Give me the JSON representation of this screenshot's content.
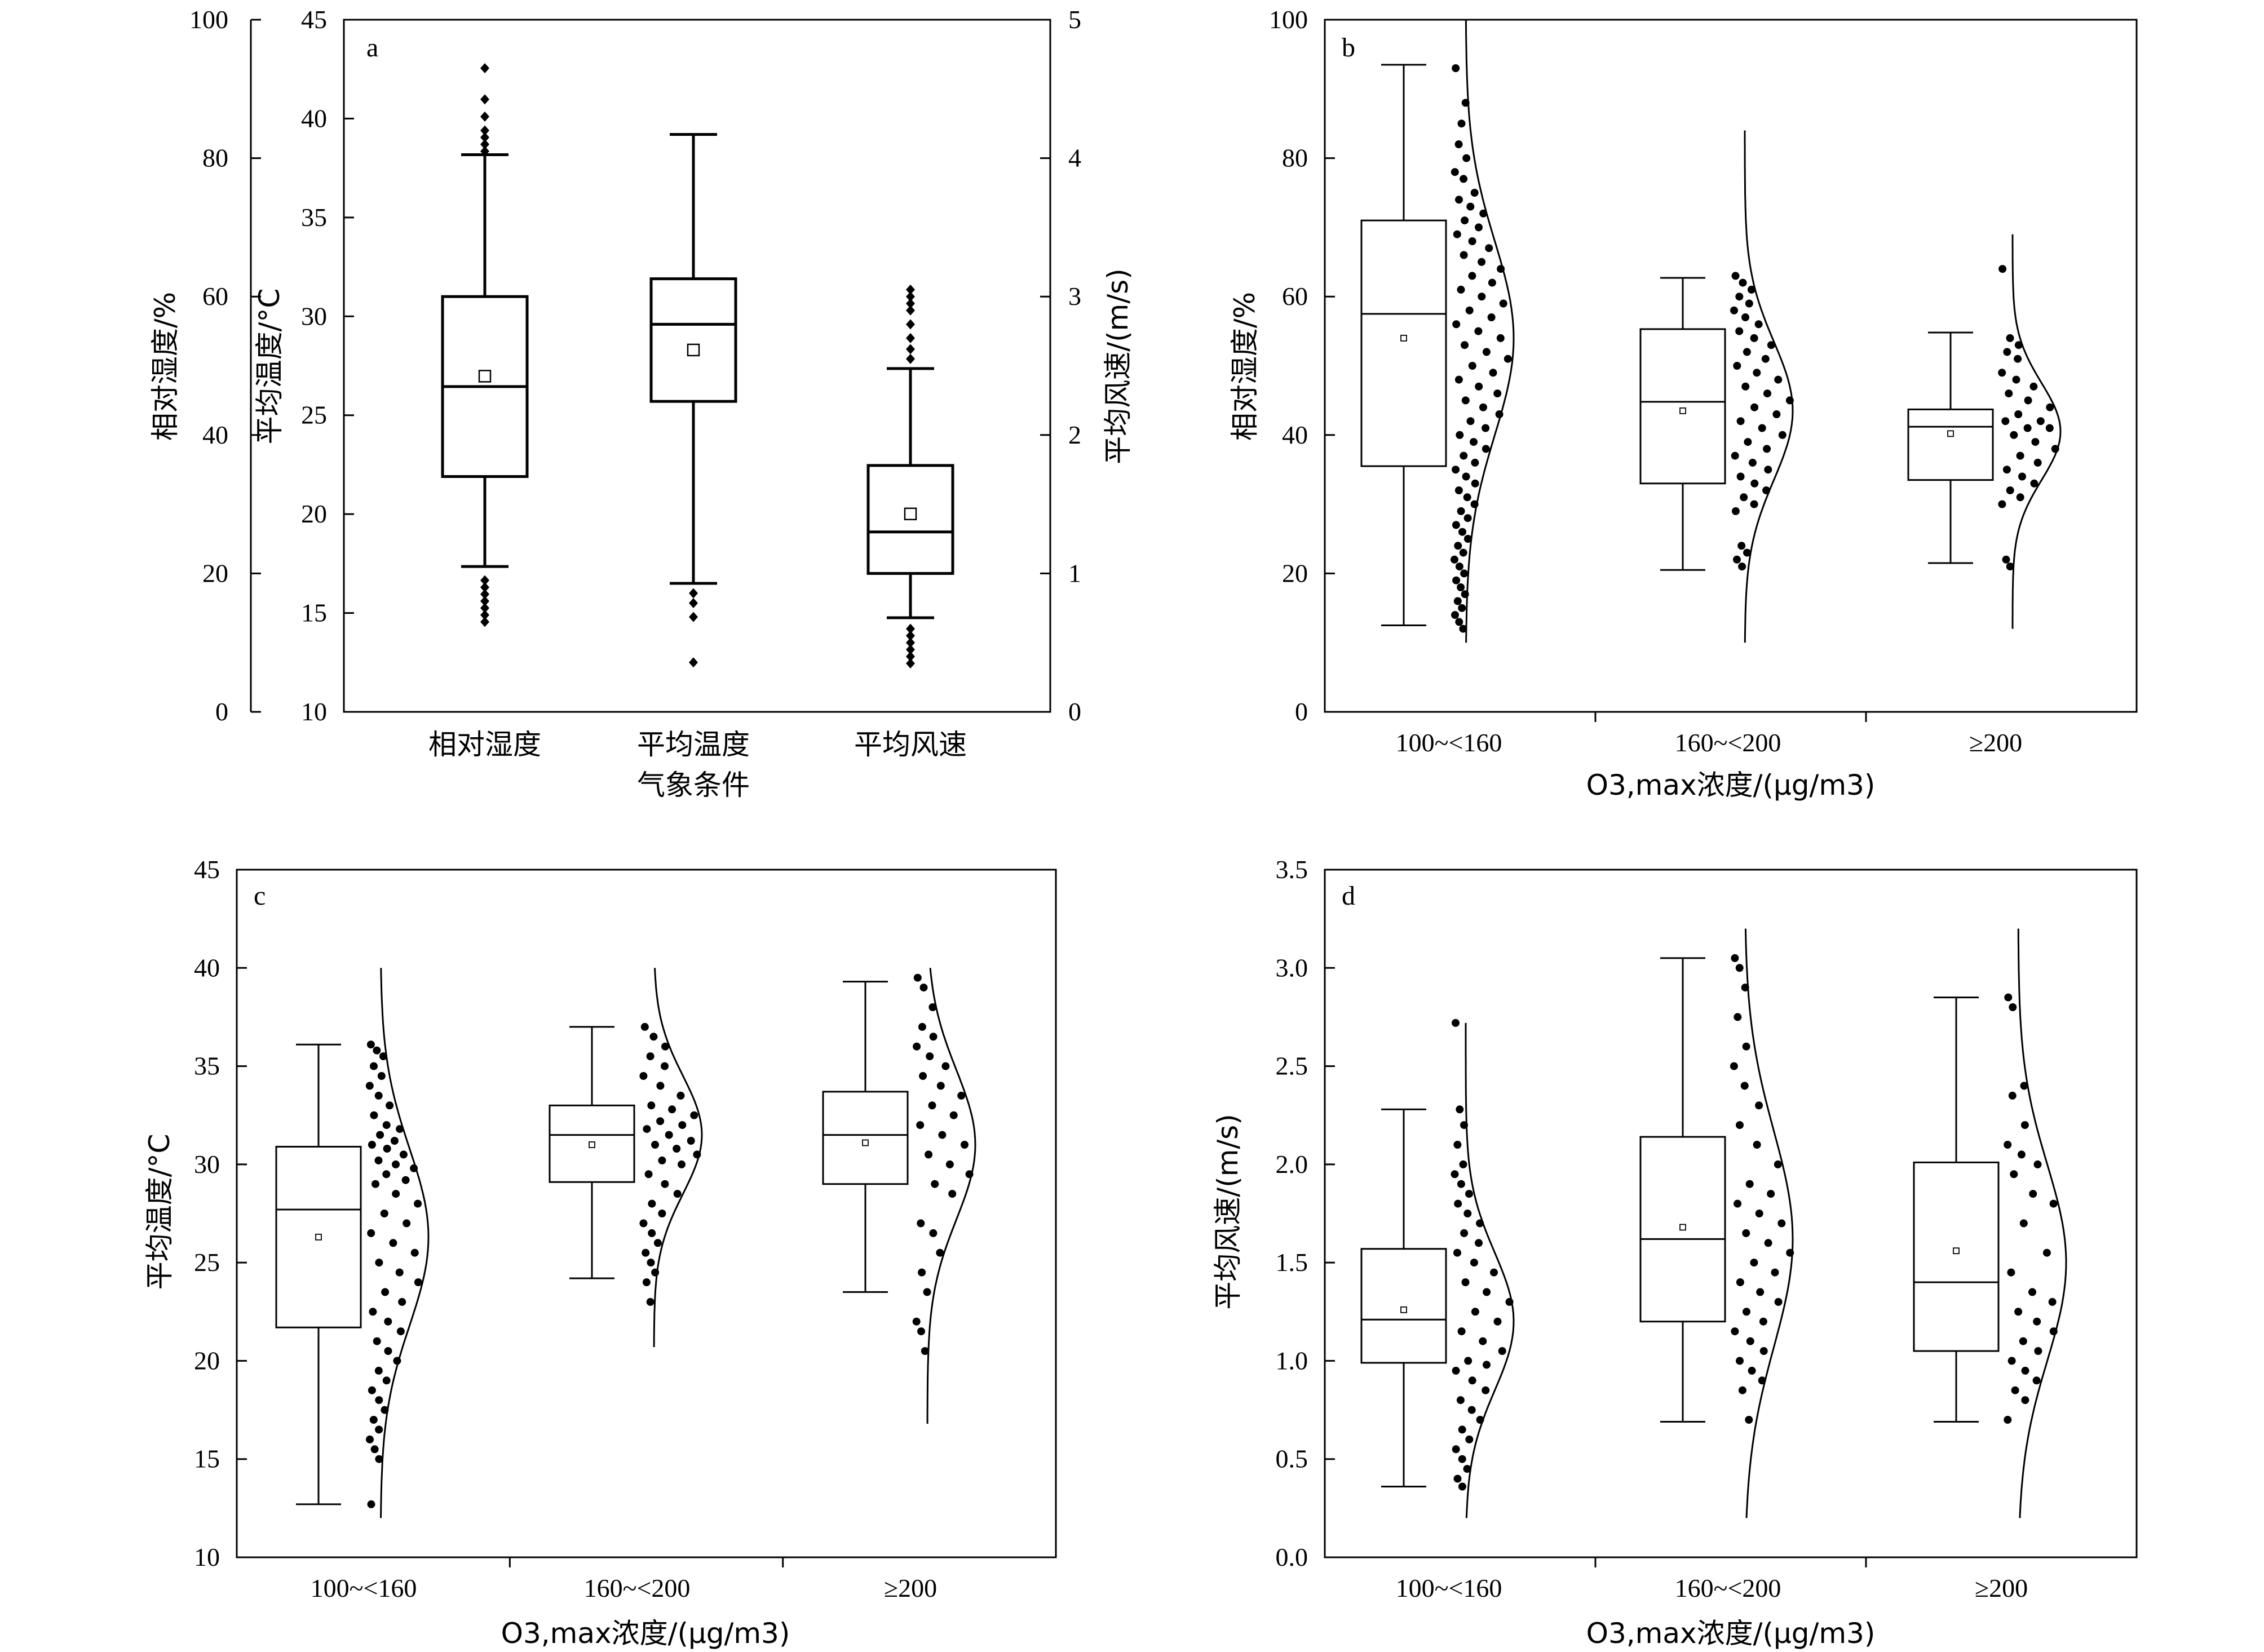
{
  "chart_data": [
    {
      "type": "box",
      "panel_label": "a",
      "xlabel": "气象条件",
      "categories": [
        "相对湿度",
        "平均温度",
        "平均风速"
      ],
      "axes": [
        {
          "side": "outer-left",
          "label": "相对湿度/%",
          "range": [
            0,
            100
          ],
          "ticks": [
            0,
            20,
            40,
            60,
            80,
            100
          ],
          "applies_to": "相对湿度"
        },
        {
          "side": "left",
          "label": "平均温度/°C",
          "range": [
            10,
            45
          ],
          "ticks": [
            10,
            15,
            20,
            25,
            30,
            35,
            40,
            45
          ],
          "applies_to": "平均温度"
        },
        {
          "side": "right",
          "label": "平均风速/(m/s)",
          "range": [
            0,
            5
          ],
          "ticks": [
            0,
            1,
            2,
            3,
            4,
            5
          ],
          "applies_to": "平均风速"
        }
      ],
      "boxes": [
        {
          "category": "相对湿度",
          "axis": "outer-left",
          "whisker_low": 21,
          "q1": 34,
          "median": 47,
          "q3": 60,
          "whisker_high": 80.5,
          "mean": 48.5,
          "outliers": [
            13,
            14,
            15,
            16,
            17,
            18,
            19,
            81,
            82,
            83,
            84,
            86,
            88.5,
            93
          ]
        },
        {
          "category": "平均温度",
          "axis": "left",
          "whisker_low": 16.5,
          "q1": 25.7,
          "median": 29.6,
          "q3": 31.9,
          "whisker_high": 39.2,
          "mean": 28.3,
          "outliers": [
            16,
            15.5,
            14.8,
            12.5
          ]
        },
        {
          "category": "平均风速",
          "axis": "right",
          "whisker_low": 0.68,
          "q1": 1.0,
          "median": 1.3,
          "q3": 1.78,
          "whisker_high": 2.48,
          "mean": 1.43,
          "outliers": [
            0.35,
            0.4,
            0.45,
            0.5,
            0.55,
            0.6,
            2.55,
            2.62,
            2.7,
            2.8,
            2.9,
            2.95,
            3.0,
            3.05
          ]
        }
      ]
    },
    {
      "type": "box",
      "panel_label": "b",
      "xlabel": "O3,max浓度/(μg/m3)",
      "ylabel": "相对湿度/%",
      "ylim": [
        0,
        100
      ],
      "yticks": [
        0,
        20,
        40,
        60,
        80,
        100
      ],
      "categories": [
        "100~<160",
        "160~<200",
        "≥200"
      ],
      "boxes": [
        {
          "whisker_low": 12.5,
          "q1": 35.5,
          "median": 57.5,
          "q3": 71,
          "whisker_high": 93.5,
          "mean": 54
        },
        {
          "whisker_low": 20.5,
          "q1": 33,
          "median": 44.8,
          "q3": 55.3,
          "whisker_high": 62.7,
          "mean": 43.5
        },
        {
          "whisker_low": 21.5,
          "q1": 33.5,
          "median": 41.2,
          "q3": 43.7,
          "whisker_high": 54.8,
          "mean": 40.2
        }
      ],
      "distribution_curves": [
        {
          "mean": 54,
          "sd": 14,
          "y_range": [
            10,
            100
          ]
        },
        {
          "mean": 43.5,
          "sd": 10,
          "y_range": [
            10,
            84
          ]
        },
        {
          "mean": 40.5,
          "sd": 7,
          "y_range": [
            12,
            69
          ]
        }
      ],
      "points": [
        [
          93,
          85,
          88,
          82,
          80,
          78,
          77,
          75,
          74,
          73,
          72,
          71,
          70,
          69,
          68,
          67,
          66,
          65,
          64,
          63,
          62,
          61,
          60,
          59,
          58,
          57,
          56,
          55,
          54,
          53,
          52,
          51,
          50,
          49,
          48,
          47,
          46,
          45,
          44,
          43,
          42,
          41,
          40,
          39,
          38,
          37,
          36,
          35,
          34,
          33,
          32,
          31,
          30,
          29,
          28,
          27,
          26,
          25,
          24,
          23,
          22,
          21,
          20,
          19,
          18,
          17,
          16,
          15,
          14,
          13,
          12
        ],
        [
          63,
          62,
          61,
          60,
          59,
          58,
          57,
          56,
          55,
          54,
          53,
          52,
          51,
          50,
          49,
          48,
          47,
          46,
          45,
          44,
          43,
          42,
          41,
          40,
          39,
          38,
          37,
          36,
          35,
          34,
          33,
          32,
          31,
          30,
          29,
          24,
          23,
          22,
          21
        ],
        [
          64,
          54,
          53,
          52,
          51,
          49,
          48,
          47,
          46,
          45,
          44,
          43,
          42,
          42,
          41,
          41,
          40,
          39,
          38,
          37,
          36,
          35,
          34,
          33,
          32,
          31,
          30,
          22,
          21
        ]
      ]
    },
    {
      "type": "box",
      "panel_label": "c",
      "xlabel": "O3,max浓度/(μg/m3)",
      "ylabel": "平均温度/°C",
      "ylim": [
        10,
        45
      ],
      "yticks": [
        10,
        15,
        20,
        25,
        30,
        35,
        40,
        45
      ],
      "categories": [
        "100~<160",
        "160~<200",
        "≥200"
      ],
      "boxes": [
        {
          "whisker_low": 12.7,
          "q1": 21.7,
          "median": 27.7,
          "q3": 30.9,
          "whisker_high": 36.1,
          "mean": 26.3
        },
        {
          "whisker_low": 24.2,
          "q1": 29.1,
          "median": 31.5,
          "q3": 33,
          "whisker_high": 37,
          "mean": 31
        },
        {
          "whisker_low": 23.5,
          "q1": 29,
          "median": 31.5,
          "q3": 33.7,
          "whisker_high": 39.3,
          "mean": 31.1
        }
      ],
      "distribution_curves": [
        {
          "mean": 26.3,
          "sd": 4.5,
          "y_range": [
            12,
            40
          ]
        },
        {
          "mean": 31.5,
          "sd": 3,
          "y_range": [
            20.7,
            40
          ]
        },
        {
          "mean": 31,
          "sd": 3.8,
          "y_range": [
            16.8,
            40
          ]
        }
      ],
      "points": [
        [
          36.1,
          35.8,
          35.5,
          35,
          34.5,
          34,
          33.5,
          33,
          32.5,
          32,
          31.8,
          31.5,
          31.2,
          31,
          30.8,
          30.5,
          30.2,
          30,
          29.8,
          29.5,
          29.2,
          29,
          28.5,
          28,
          27.5,
          27,
          26.5,
          26,
          25.5,
          25,
          24.5,
          24,
          23.5,
          23,
          22.5,
          22,
          21.5,
          21,
          20.5,
          20,
          19.5,
          19,
          18.5,
          18,
          17.5,
          17,
          16.5,
          16,
          15.5,
          15,
          12.7
        ],
        [
          37,
          36.5,
          36,
          35.5,
          35,
          34.5,
          34,
          33.5,
          33,
          32.8,
          32.5,
          32.2,
          32,
          31.8,
          31.5,
          31.2,
          31,
          30.8,
          30.5,
          30.2,
          30,
          29.5,
          29,
          28.5,
          28,
          27.5,
          27,
          26.5,
          26,
          25.5,
          25,
          24.5,
          24,
          23
        ],
        [
          39.5,
          39,
          38,
          37,
          36.5,
          36,
          35.5,
          35,
          34.5,
          34,
          33.5,
          33,
          32.5,
          32,
          31.5,
          31,
          30.5,
          30,
          29.5,
          29,
          28.5,
          27,
          26.5,
          25.5,
          24.5,
          23.5,
          22,
          21.5,
          20.5
        ]
      ]
    },
    {
      "type": "box",
      "panel_label": "d",
      "xlabel": "O3,max浓度/(μg/m3)",
      "ylabel": "平均风速/(m/s)",
      "ylim": [
        0,
        3.5
      ],
      "yticks": [
        0,
        0.5,
        1.0,
        1.5,
        2.0,
        2.5,
        3.0,
        3.5
      ],
      "categories": [
        "100~<160",
        "160~<200",
        "≥200"
      ],
      "boxes": [
        {
          "whisker_low": 0.36,
          "q1": 0.99,
          "median": 1.21,
          "q3": 1.57,
          "whisker_high": 2.28,
          "mean": 1.26
        },
        {
          "whisker_low": 0.69,
          "q1": 1.2,
          "median": 1.62,
          "q3": 2.14,
          "whisker_high": 3.05,
          "mean": 1.68
        },
        {
          "whisker_low": 0.69,
          "q1": 1.05,
          "median": 1.4,
          "q3": 2.01,
          "whisker_high": 2.85,
          "mean": 1.56
        }
      ],
      "distribution_curves": [
        {
          "mean": 1.2,
          "sd": 0.35,
          "y_range": [
            0.2,
            2.72
          ]
        },
        {
          "mean": 1.62,
          "sd": 0.55,
          "y_range": [
            0.2,
            3.2
          ]
        },
        {
          "mean": 1.5,
          "sd": 0.5,
          "y_range": [
            0.2,
            3.2
          ]
        }
      ],
      "points": [
        [
          2.72,
          2.28,
          2.2,
          2.1,
          2.0,
          1.95,
          1.9,
          1.85,
          1.8,
          1.75,
          1.7,
          1.65,
          1.6,
          1.55,
          1.5,
          1.45,
          1.4,
          1.35,
          1.3,
          1.25,
          1.2,
          1.15,
          1.1,
          1.05,
          1.0,
          0.98,
          0.95,
          0.9,
          0.85,
          0.8,
          0.75,
          0.7,
          0.65,
          0.6,
          0.55,
          0.5,
          0.45,
          0.4,
          0.36
        ],
        [
          3.05,
          3.0,
          2.9,
          2.75,
          2.6,
          2.5,
          2.4,
          2.3,
          2.2,
          2.1,
          2.0,
          1.9,
          1.85,
          1.8,
          1.75,
          1.7,
          1.65,
          1.6,
          1.55,
          1.5,
          1.45,
          1.4,
          1.35,
          1.3,
          1.25,
          1.2,
          1.15,
          1.1,
          1.05,
          1.0,
          0.95,
          0.9,
          0.85,
          0.7
        ],
        [
          2.85,
          2.8,
          2.4,
          2.35,
          2.2,
          2.1,
          2.05,
          2.0,
          1.95,
          1.85,
          1.8,
          1.7,
          1.55,
          1.45,
          1.35,
          1.3,
          1.25,
          1.2,
          1.15,
          1.1,
          1.05,
          1.0,
          0.95,
          0.9,
          0.85,
          0.8,
          0.7
        ]
      ]
    }
  ]
}
